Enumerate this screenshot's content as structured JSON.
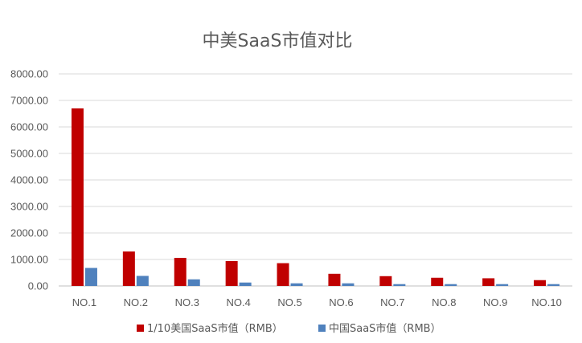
{
  "chart_data": {
    "type": "bar",
    "title": "中美SaaS市值对比",
    "xlabel": "",
    "ylabel": "",
    "ylim": [
      0,
      8000
    ],
    "yticks": [
      "0.00",
      "1000.00",
      "2000.00",
      "3000.00",
      "4000.00",
      "5000.00",
      "6000.00",
      "7000.00",
      "8000.00"
    ],
    "categories": [
      "NO.1",
      "NO.2",
      "NO.3",
      "NO.4",
      "NO.5",
      "NO.6",
      "NO.7",
      "NO.8",
      "NO.9",
      "NO.10"
    ],
    "series": [
      {
        "name": "1/10美国SaaS市值（RMB）",
        "color": "#c00000",
        "values": [
          6700,
          1300,
          1060,
          940,
          860,
          460,
          370,
          310,
          290,
          220
        ]
      },
      {
        "name": "中国SaaS市值（RMB）",
        "color": "#4f81bd",
        "values": [
          680,
          380,
          250,
          130,
          100,
          100,
          70,
          70,
          70,
          70
        ]
      }
    ],
    "grid": true,
    "legend_position": "bottom"
  }
}
